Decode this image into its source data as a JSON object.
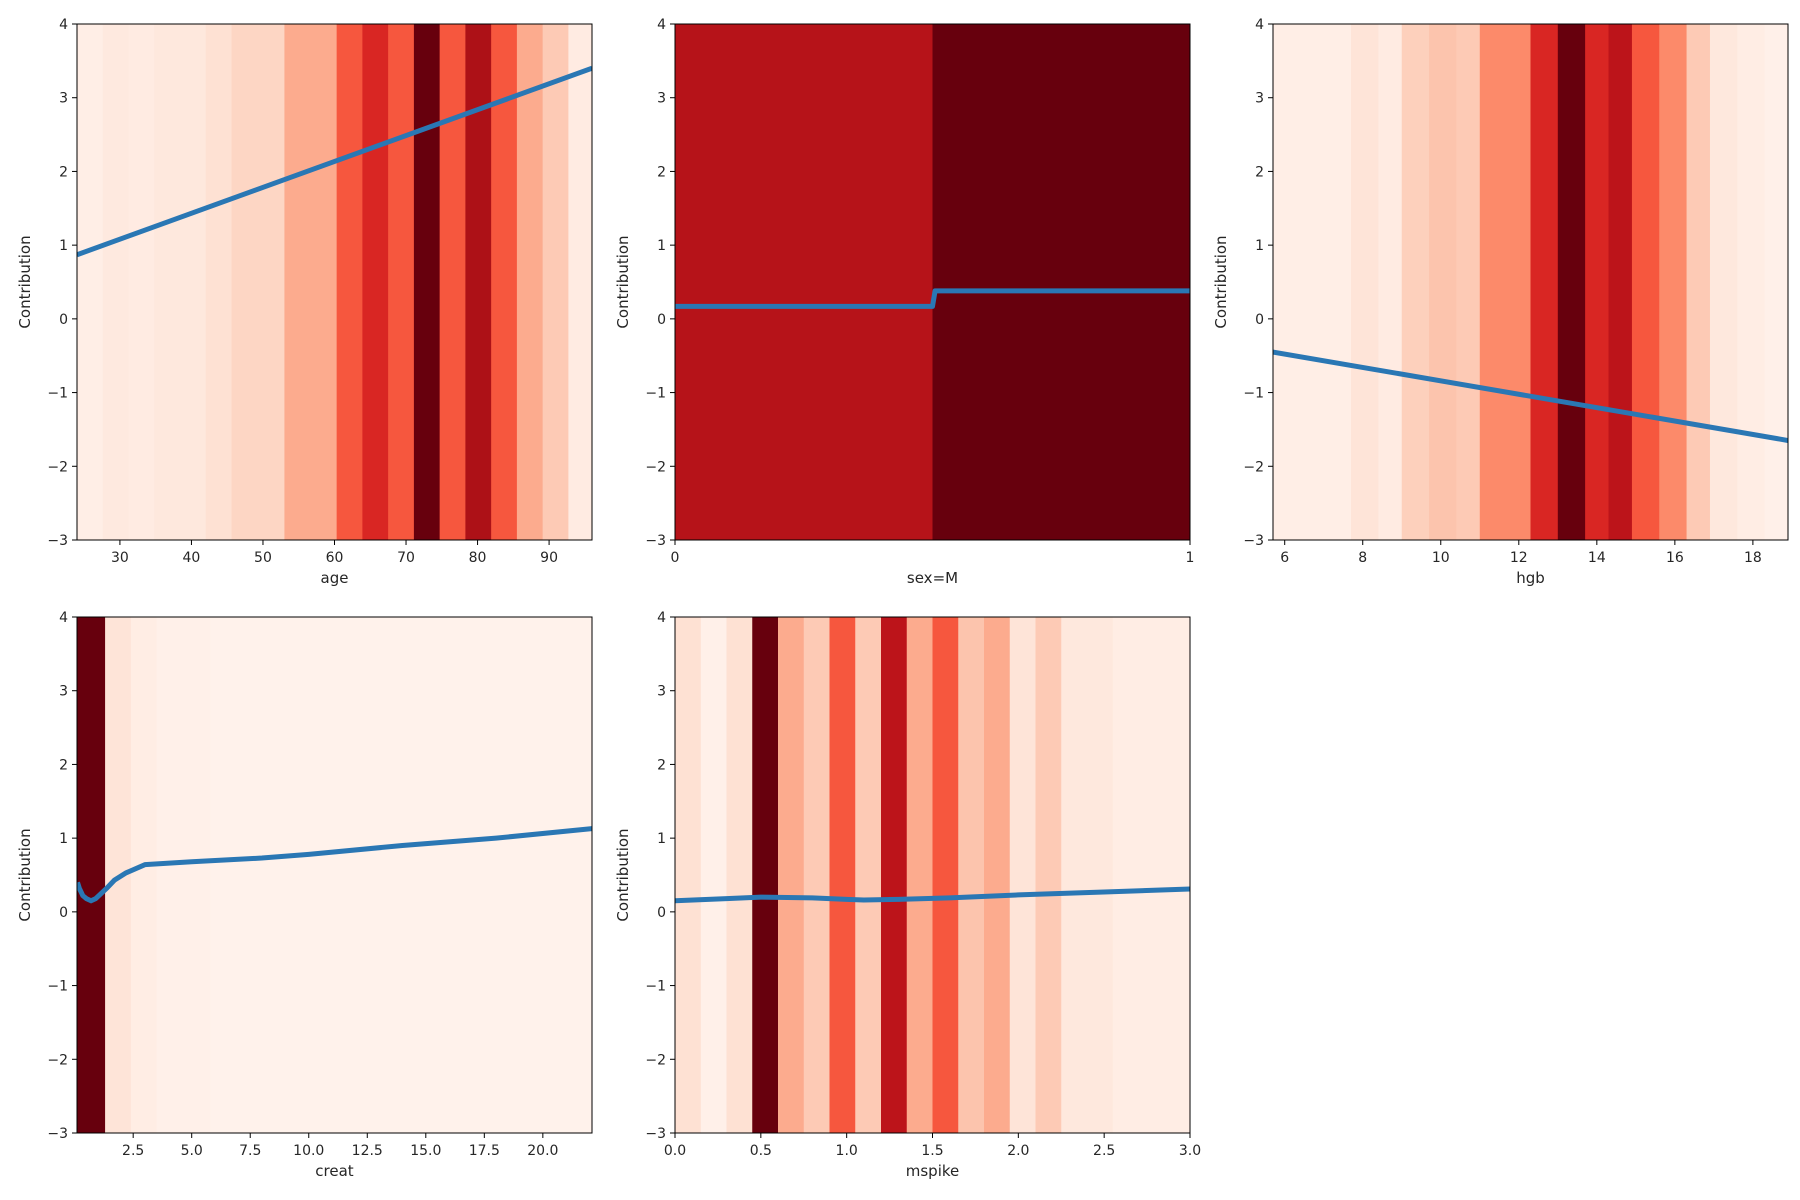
{
  "figure": {
    "colormap": "Reds",
    "line_color": "#2a77b4"
  },
  "chart_data": [
    {
      "type": "line",
      "panel": "age",
      "xlabel": "age",
      "ylabel": "Contribution",
      "xlim": [
        24,
        96
      ],
      "ylim": [
        -3,
        4
      ],
      "xticks": [
        30,
        40,
        50,
        60,
        70,
        80,
        90
      ],
      "xtick_labels": [
        "30",
        "40",
        "50",
        "60",
        "70",
        "80",
        "90"
      ],
      "yticks": [
        -3,
        -2,
        -1,
        0,
        1,
        2,
        3,
        4
      ],
      "ytick_labels": [
        "−3",
        "−2",
        "−1",
        "0",
        "1",
        "2",
        "3",
        "4"
      ],
      "density_bins": [
        {
          "x0": 24,
          "x1": 27.6,
          "v": 0.04
        },
        {
          "x0": 27.6,
          "x1": 31.2,
          "v": 0.07
        },
        {
          "x0": 31.2,
          "x1": 34.8,
          "v": 0.06
        },
        {
          "x0": 34.8,
          "x1": 42,
          "v": 0.08
        },
        {
          "x0": 42,
          "x1": 45.6,
          "v": 0.12
        },
        {
          "x0": 45.6,
          "x1": 53,
          "v": 0.16
        },
        {
          "x0": 53,
          "x1": 60.3,
          "v": 0.3
        },
        {
          "x0": 60.3,
          "x1": 63.9,
          "v": 0.55
        },
        {
          "x0": 63.9,
          "x1": 67.5,
          "v": 0.7
        },
        {
          "x0": 67.5,
          "x1": 71.1,
          "v": 0.55
        },
        {
          "x0": 71.1,
          "x1": 74.7,
          "v": 1.0
        },
        {
          "x0": 74.7,
          "x1": 78.3,
          "v": 0.55
        },
        {
          "x0": 78.3,
          "x1": 81.9,
          "v": 0.85
        },
        {
          "x0": 81.9,
          "x1": 85.5,
          "v": 0.55
        },
        {
          "x0": 85.5,
          "x1": 89.1,
          "v": 0.3
        },
        {
          "x0": 89.1,
          "x1": 92.7,
          "v": 0.2
        },
        {
          "x0": 92.7,
          "x1": 96,
          "v": 0.06
        }
      ],
      "series": [
        {
          "name": "contribution",
          "x": [
            24,
            96
          ],
          "y": [
            0.87,
            3.4
          ]
        }
      ]
    },
    {
      "type": "line",
      "panel": "sex",
      "xlabel": "sex=M",
      "ylabel": "Contribution",
      "xlim": [
        0,
        1
      ],
      "ylim": [
        -3,
        4
      ],
      "xticks": [
        0,
        1
      ],
      "xtick_labels": [
        "0",
        "1"
      ],
      "yticks": [
        -3,
        -2,
        -1,
        0,
        1,
        2,
        3,
        4
      ],
      "ytick_labels": [
        "−3",
        "−2",
        "−1",
        "0",
        "1",
        "2",
        "3",
        "4"
      ],
      "density_bins": [
        {
          "x0": 0,
          "x1": 0.5,
          "v": 0.82
        },
        {
          "x0": 0.5,
          "x1": 1,
          "v": 1.0
        }
      ],
      "series": [
        {
          "name": "contribution",
          "x": [
            0,
            0.5,
            0.505,
            1
          ],
          "y": [
            0.17,
            0.17,
            0.38,
            0.38
          ]
        }
      ]
    },
    {
      "type": "line",
      "panel": "hgb",
      "xlabel": "hgb",
      "ylabel": "Contribution",
      "xlim": [
        5.7,
        18.9
      ],
      "ylim": [
        -3,
        4
      ],
      "xticks": [
        6,
        8,
        10,
        12,
        14,
        16,
        18
      ],
      "xtick_labels": [
        "6",
        "8",
        "10",
        "12",
        "14",
        "16",
        "18"
      ],
      "yticks": [
        -3,
        -2,
        -1,
        0,
        1,
        2,
        3,
        4
      ],
      "ytick_labels": [
        "−3",
        "−2",
        "−1",
        "0",
        "1",
        "2",
        "3",
        "4"
      ],
      "density_bins": [
        {
          "x0": 5.7,
          "x1": 7.7,
          "v": 0.04
        },
        {
          "x0": 7.7,
          "x1": 8.4,
          "v": 0.1
        },
        {
          "x0": 8.4,
          "x1": 9.0,
          "v": 0.06
        },
        {
          "x0": 9.0,
          "x1": 9.7,
          "v": 0.18
        },
        {
          "x0": 9.7,
          "x1": 10.4,
          "v": 0.22
        },
        {
          "x0": 10.4,
          "x1": 11.0,
          "v": 0.2
        },
        {
          "x0": 11.0,
          "x1": 11.7,
          "v": 0.4
        },
        {
          "x0": 11.7,
          "x1": 12.3,
          "v": 0.4
        },
        {
          "x0": 12.3,
          "x1": 13.0,
          "v": 0.7
        },
        {
          "x0": 13.0,
          "x1": 13.7,
          "v": 1.0
        },
        {
          "x0": 13.7,
          "x1": 14.3,
          "v": 0.7
        },
        {
          "x0": 14.3,
          "x1": 14.9,
          "v": 0.8
        },
        {
          "x0": 14.9,
          "x1": 15.6,
          "v": 0.55
        },
        {
          "x0": 15.6,
          "x1": 16.3,
          "v": 0.4
        },
        {
          "x0": 16.3,
          "x1": 16.9,
          "v": 0.2
        },
        {
          "x0": 16.9,
          "x1": 17.6,
          "v": 0.08
        },
        {
          "x0": 17.6,
          "x1": 18.3,
          "v": 0.05
        },
        {
          "x0": 18.3,
          "x1": 18.9,
          "v": 0.03
        }
      ],
      "series": [
        {
          "name": "contribution",
          "x": [
            5.7,
            18.9
          ],
          "y": [
            -0.45,
            -1.65
          ]
        }
      ]
    },
    {
      "type": "line",
      "panel": "creat",
      "xlabel": "creat",
      "ylabel": "Contribution",
      "xlim": [
        0.1,
        22.1
      ],
      "ylim": [
        -3,
        4
      ],
      "xticks": [
        2.5,
        5.0,
        7.5,
        10.0,
        12.5,
        15.0,
        17.5,
        20.0
      ],
      "xtick_labels": [
        "2.5",
        "5.0",
        "7.5",
        "10.0",
        "12.5",
        "15.0",
        "17.5",
        "20.0"
      ],
      "yticks": [
        -3,
        -2,
        -1,
        0,
        1,
        2,
        3,
        4
      ],
      "ytick_labels": [
        "−3",
        "−2",
        "−1",
        "0",
        "1",
        "2",
        "3",
        "4"
      ],
      "density_bins": [
        {
          "x0": 0.1,
          "x1": 1.3,
          "v": 1.0
        },
        {
          "x0": 1.3,
          "x1": 2.4,
          "v": 0.1
        },
        {
          "x0": 2.4,
          "x1": 3.5,
          "v": 0.05
        },
        {
          "x0": 3.5,
          "x1": 5.8,
          "v": 0.03
        },
        {
          "x0": 5.8,
          "x1": 22.1,
          "v": 0.02
        }
      ],
      "series": [
        {
          "name": "contribution",
          "x": [
            0.12,
            0.2,
            0.35,
            0.5,
            0.7,
            0.9,
            1.1,
            1.4,
            1.7,
            2.2,
            3.0,
            5.0,
            8.0,
            10.0,
            14.0,
            18.0,
            22.1
          ],
          "y": [
            0.4,
            0.32,
            0.22,
            0.18,
            0.15,
            0.18,
            0.24,
            0.33,
            0.43,
            0.53,
            0.64,
            0.68,
            0.73,
            0.78,
            0.9,
            1.0,
            1.13
          ]
        }
      ]
    },
    {
      "type": "line",
      "panel": "mspike",
      "xlabel": "mspike",
      "ylabel": "Contribution",
      "xlim": [
        0,
        3.0
      ],
      "ylim": [
        -3,
        4
      ],
      "xticks": [
        0.0,
        0.5,
        1.0,
        1.5,
        2.0,
        2.5,
        3.0
      ],
      "xtick_labels": [
        "0.0",
        "0.5",
        "1.0",
        "1.5",
        "2.0",
        "2.5",
        "3.0"
      ],
      "yticks": [
        -3,
        -2,
        -1,
        0,
        1,
        2,
        3,
        4
      ],
      "ytick_labels": [
        "−3",
        "−2",
        "−1",
        "0",
        "1",
        "2",
        "3",
        "4"
      ],
      "density_bins": [
        {
          "x0": 0.0,
          "x1": 0.15,
          "v": 0.12
        },
        {
          "x0": 0.15,
          "x1": 0.3,
          "v": 0.03
        },
        {
          "x0": 0.3,
          "x1": 0.45,
          "v": 0.12
        },
        {
          "x0": 0.45,
          "x1": 0.6,
          "v": 1.0
        },
        {
          "x0": 0.6,
          "x1": 0.75,
          "v": 0.3
        },
        {
          "x0": 0.75,
          "x1": 0.9,
          "v": 0.2
        },
        {
          "x0": 0.9,
          "x1": 1.05,
          "v": 0.55
        },
        {
          "x0": 1.05,
          "x1": 1.2,
          "v": 0.2
        },
        {
          "x0": 1.2,
          "x1": 1.35,
          "v": 0.8
        },
        {
          "x0": 1.35,
          "x1": 1.5,
          "v": 0.3
        },
        {
          "x0": 1.5,
          "x1": 1.65,
          "v": 0.55
        },
        {
          "x0": 1.65,
          "x1": 1.8,
          "v": 0.22
        },
        {
          "x0": 1.8,
          "x1": 1.95,
          "v": 0.3
        },
        {
          "x0": 1.95,
          "x1": 2.1,
          "v": 0.1
        },
        {
          "x0": 2.1,
          "x1": 2.25,
          "v": 0.2
        },
        {
          "x0": 2.25,
          "x1": 2.55,
          "v": 0.08
        },
        {
          "x0": 2.55,
          "x1": 3.0,
          "v": 0.05
        }
      ],
      "series": [
        {
          "name": "contribution",
          "x": [
            0,
            0.3,
            0.5,
            0.8,
            1.0,
            1.1,
            1.3,
            1.6,
            2.0,
            2.5,
            3.0
          ],
          "y": [
            0.15,
            0.18,
            0.2,
            0.19,
            0.17,
            0.16,
            0.17,
            0.19,
            0.23,
            0.27,
            0.31
          ]
        }
      ]
    }
  ]
}
